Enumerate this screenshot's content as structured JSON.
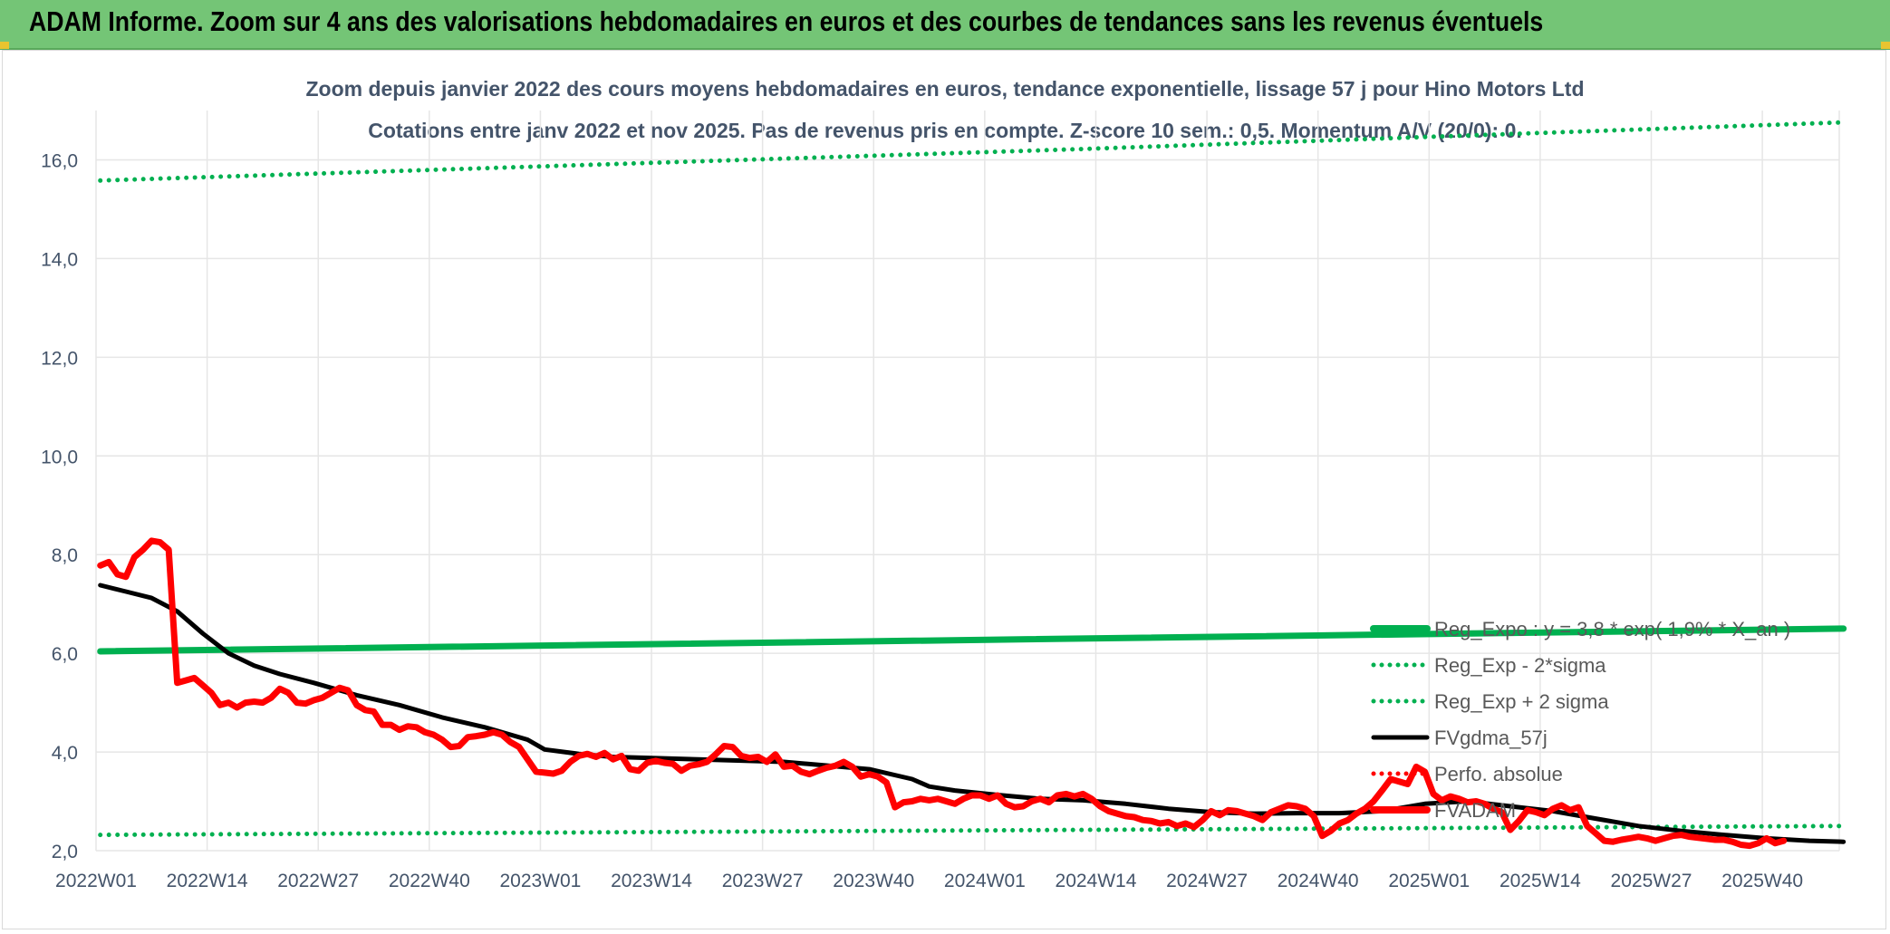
{
  "banner": {
    "title": "ADAM Informe. Zoom sur 4 ans des valorisations hebdomadaires en euros et des courbes de tendances sans les revenus éventuels"
  },
  "colors": {
    "banner_bg": "#74c576",
    "reg_expo": "#00b050",
    "price": "#ff0000",
    "mma": "#000000",
    "grid": "#e6e6e6"
  },
  "chart_data": {
    "type": "line",
    "title": "Zoom depuis janvier 2022 des cours moyens hebdomadaires en euros, tendance exponentielle, lissage 57 j pour Hino Motors Ltd",
    "subtitle": "Cotations entre janv 2022 et nov 2025. Pas de revenus pris en compte. Z-score 10 sem.: 0,5. Momentum A/V (20/0): 0.",
    "xlabel": "",
    "ylabel": "",
    "ylim": [
      2.0,
      17.0
    ],
    "yticks": [
      "2,0",
      "4,0",
      "6,0",
      "8,0",
      "10,0",
      "12,0",
      "14,0",
      "16,0"
    ],
    "ytick_values": [
      2,
      4,
      6,
      8,
      10,
      12,
      14,
      16
    ],
    "xticks": [
      "2022W01",
      "2022W14",
      "2022W27",
      "2022W40",
      "2023W01",
      "2023W14",
      "2023W27",
      "2023W40",
      "2024W01",
      "2024W14",
      "2024W27",
      "2024W40",
      "2025W01",
      "2025W14",
      "2025W27",
      "2025W40"
    ],
    "xtick_weeks": [
      0,
      13,
      26,
      39,
      52,
      65,
      78,
      91,
      104,
      117,
      130,
      143,
      156,
      169,
      182,
      195
    ],
    "week_count": 204,
    "grid": true,
    "legend_position": "right",
    "series": [
      {
        "name": "Reg_Expo : y = 3,8 * exp( 1,9% * X_an )",
        "style": "solid-thick",
        "color": "#00b050",
        "points": [
          [
            0,
            6.04
          ],
          [
            204,
            6.5
          ]
        ]
      },
      {
        "name": "Reg_Exp - 2*sigma",
        "style": "dotted",
        "color": "#00b050",
        "points": [
          [
            0,
            2.32
          ],
          [
            204,
            2.5
          ]
        ]
      },
      {
        "name": "Reg_Exp + 2 sigma",
        "style": "dotted",
        "color": "#00b050",
        "points": [
          [
            0,
            15.58
          ],
          [
            115,
            16.22
          ],
          [
            176,
            16.59
          ],
          [
            204,
            16.76
          ]
        ]
      },
      {
        "name": "FVgdma_57j",
        "style": "solid",
        "color": "#000000",
        "points": [
          [
            0,
            7.38
          ],
          [
            3,
            7.25
          ],
          [
            6,
            7.12
          ],
          [
            9,
            6.85
          ],
          [
            12,
            6.4
          ],
          [
            15,
            6.0
          ],
          [
            18,
            5.75
          ],
          [
            21,
            5.58
          ],
          [
            25,
            5.4
          ],
          [
            30,
            5.15
          ],
          [
            35,
            4.95
          ],
          [
            40,
            4.7
          ],
          [
            45,
            4.5
          ],
          [
            50,
            4.25
          ],
          [
            52,
            4.05
          ],
          [
            56,
            3.96
          ],
          [
            60,
            3.9
          ],
          [
            70,
            3.85
          ],
          [
            80,
            3.8
          ],
          [
            90,
            3.65
          ],
          [
            95,
            3.45
          ],
          [
            97,
            3.3
          ],
          [
            100,
            3.22
          ],
          [
            105,
            3.13
          ],
          [
            110,
            3.05
          ],
          [
            115,
            3.02
          ],
          [
            120,
            2.95
          ],
          [
            125,
            2.85
          ],
          [
            130,
            2.78
          ],
          [
            135,
            2.75
          ],
          [
            140,
            2.76
          ],
          [
            145,
            2.76
          ],
          [
            150,
            2.8
          ],
          [
            155,
            2.95
          ],
          [
            160,
            3.0
          ],
          [
            165,
            2.9
          ],
          [
            170,
            2.8
          ],
          [
            175,
            2.65
          ],
          [
            180,
            2.5
          ],
          [
            185,
            2.4
          ],
          [
            190,
            2.32
          ],
          [
            195,
            2.25
          ],
          [
            200,
            2.2
          ],
          [
            204,
            2.18
          ]
        ]
      },
      {
        "name": "Perfo. absolue",
        "style": "dotted",
        "color": "#ff0000",
        "points": []
      },
      {
        "name": "FVADAM",
        "style": "solid-thick",
        "color": "#ff0000",
        "points": [
          [
            0,
            7.78
          ],
          [
            1,
            7.85
          ],
          [
            2,
            7.6
          ],
          [
            3,
            7.55
          ],
          [
            4,
            7.95
          ],
          [
            5,
            8.1
          ],
          [
            6,
            8.28
          ],
          [
            7,
            8.25
          ],
          [
            8,
            8.1
          ],
          [
            9,
            5.4
          ],
          [
            10,
            5.45
          ],
          [
            11,
            5.5
          ],
          [
            12,
            5.35
          ],
          [
            13,
            5.2
          ],
          [
            14,
            4.95
          ],
          [
            15,
            5.0
          ],
          [
            16,
            4.9
          ],
          [
            17,
            5.0
          ],
          [
            18,
            5.02
          ],
          [
            19,
            5.0
          ],
          [
            20,
            5.1
          ],
          [
            21,
            5.28
          ],
          [
            22,
            5.2
          ],
          [
            23,
            5.0
          ],
          [
            24,
            4.98
          ],
          [
            25,
            5.05
          ],
          [
            26,
            5.1
          ],
          [
            27,
            5.2
          ],
          [
            28,
            5.3
          ],
          [
            29,
            5.25
          ],
          [
            30,
            4.95
          ],
          [
            31,
            4.85
          ],
          [
            32,
            4.82
          ],
          [
            33,
            4.55
          ],
          [
            34,
            4.55
          ],
          [
            35,
            4.45
          ],
          [
            36,
            4.52
          ],
          [
            37,
            4.5
          ],
          [
            38,
            4.4
          ],
          [
            39,
            4.35
          ],
          [
            40,
            4.25
          ],
          [
            41,
            4.1
          ],
          [
            42,
            4.12
          ],
          [
            43,
            4.3
          ],
          [
            44,
            4.32
          ],
          [
            45,
            4.35
          ],
          [
            46,
            4.4
          ],
          [
            47,
            4.35
          ],
          [
            48,
            4.2
          ],
          [
            49,
            4.1
          ],
          [
            50,
            3.85
          ],
          [
            51,
            3.6
          ],
          [
            52,
            3.58
          ],
          [
            53,
            3.56
          ],
          [
            54,
            3.62
          ],
          [
            55,
            3.8
          ],
          [
            56,
            3.92
          ],
          [
            57,
            3.96
          ],
          [
            58,
            3.9
          ],
          [
            59,
            3.98
          ],
          [
            60,
            3.85
          ],
          [
            61,
            3.92
          ],
          [
            62,
            3.65
          ],
          [
            63,
            3.62
          ],
          [
            64,
            3.78
          ],
          [
            65,
            3.82
          ],
          [
            66,
            3.78
          ],
          [
            67,
            3.76
          ],
          [
            68,
            3.62
          ],
          [
            69,
            3.72
          ],
          [
            70,
            3.75
          ],
          [
            71,
            3.8
          ],
          [
            72,
            3.95
          ],
          [
            73,
            4.12
          ],
          [
            74,
            4.1
          ],
          [
            75,
            3.92
          ],
          [
            76,
            3.88
          ],
          [
            77,
            3.9
          ],
          [
            78,
            3.8
          ],
          [
            79,
            3.95
          ],
          [
            80,
            3.7
          ],
          [
            81,
            3.72
          ],
          [
            82,
            3.6
          ],
          [
            83,
            3.55
          ],
          [
            84,
            3.62
          ],
          [
            85,
            3.68
          ],
          [
            86,
            3.72
          ],
          [
            87,
            3.8
          ],
          [
            88,
            3.7
          ],
          [
            89,
            3.5
          ],
          [
            90,
            3.55
          ],
          [
            91,
            3.5
          ],
          [
            92,
            3.38
          ],
          [
            93,
            2.88
          ],
          [
            94,
            2.98
          ],
          [
            95,
            3.0
          ],
          [
            96,
            3.05
          ],
          [
            97,
            3.02
          ],
          [
            98,
            3.05
          ],
          [
            99,
            3.0
          ],
          [
            100,
            2.95
          ],
          [
            101,
            3.05
          ],
          [
            102,
            3.12
          ],
          [
            103,
            3.12
          ],
          [
            104,
            3.05
          ],
          [
            105,
            3.12
          ],
          [
            106,
            2.95
          ],
          [
            107,
            2.88
          ],
          [
            108,
            2.9
          ],
          [
            109,
            3.0
          ],
          [
            110,
            3.05
          ],
          [
            111,
            2.98
          ],
          [
            112,
            3.12
          ],
          [
            113,
            3.15
          ],
          [
            114,
            3.1
          ],
          [
            115,
            3.15
          ],
          [
            116,
            3.05
          ],
          [
            117,
            2.9
          ],
          [
            118,
            2.8
          ],
          [
            119,
            2.75
          ],
          [
            120,
            2.7
          ],
          [
            121,
            2.68
          ],
          [
            122,
            2.62
          ],
          [
            123,
            2.6
          ],
          [
            124,
            2.55
          ],
          [
            125,
            2.58
          ],
          [
            126,
            2.5
          ],
          [
            127,
            2.55
          ],
          [
            128,
            2.48
          ],
          [
            129,
            2.62
          ],
          [
            130,
            2.8
          ],
          [
            131,
            2.72
          ],
          [
            132,
            2.82
          ],
          [
            133,
            2.8
          ],
          [
            134,
            2.75
          ],
          [
            135,
            2.7
          ],
          [
            136,
            2.62
          ],
          [
            137,
            2.78
          ],
          [
            138,
            2.85
          ],
          [
            139,
            2.92
          ],
          [
            140,
            2.9
          ],
          [
            141,
            2.85
          ],
          [
            142,
            2.7
          ],
          [
            143,
            2.3
          ],
          [
            144,
            2.4
          ],
          [
            145,
            2.55
          ],
          [
            146,
            2.62
          ],
          [
            147,
            2.75
          ],
          [
            148,
            2.85
          ],
          [
            149,
            3.0
          ],
          [
            150,
            3.22
          ],
          [
            151,
            3.45
          ],
          [
            152,
            3.4
          ],
          [
            153,
            3.35
          ],
          [
            154,
            3.7
          ],
          [
            155,
            3.6
          ],
          [
            156,
            3.15
          ],
          [
            157,
            3.02
          ],
          [
            158,
            3.1
          ],
          [
            159,
            3.05
          ],
          [
            160,
            2.98
          ],
          [
            161,
            3.0
          ],
          [
            162,
            2.95
          ],
          [
            163,
            2.85
          ],
          [
            164,
            2.78
          ],
          [
            165,
            2.42
          ],
          [
            166,
            2.6
          ],
          [
            167,
            2.82
          ],
          [
            168,
            2.78
          ],
          [
            169,
            2.72
          ],
          [
            170,
            2.85
          ],
          [
            171,
            2.92
          ],
          [
            172,
            2.82
          ],
          [
            173,
            2.88
          ],
          [
            174,
            2.5
          ],
          [
            175,
            2.35
          ],
          [
            176,
            2.2
          ],
          [
            177,
            2.18
          ],
          [
            178,
            2.22
          ],
          [
            179,
            2.25
          ],
          [
            180,
            2.28
          ],
          [
            181,
            2.25
          ],
          [
            182,
            2.2
          ],
          [
            183,
            2.25
          ],
          [
            184,
            2.3
          ],
          [
            185,
            2.32
          ],
          [
            186,
            2.28
          ],
          [
            187,
            2.26
          ],
          [
            188,
            2.24
          ],
          [
            189,
            2.22
          ],
          [
            190,
            2.22
          ],
          [
            191,
            2.18
          ],
          [
            192,
            2.12
          ],
          [
            193,
            2.1
          ],
          [
            194,
            2.15
          ],
          [
            195,
            2.25
          ],
          [
            196,
            2.15
          ],
          [
            197,
            2.2
          ]
        ]
      }
    ]
  }
}
